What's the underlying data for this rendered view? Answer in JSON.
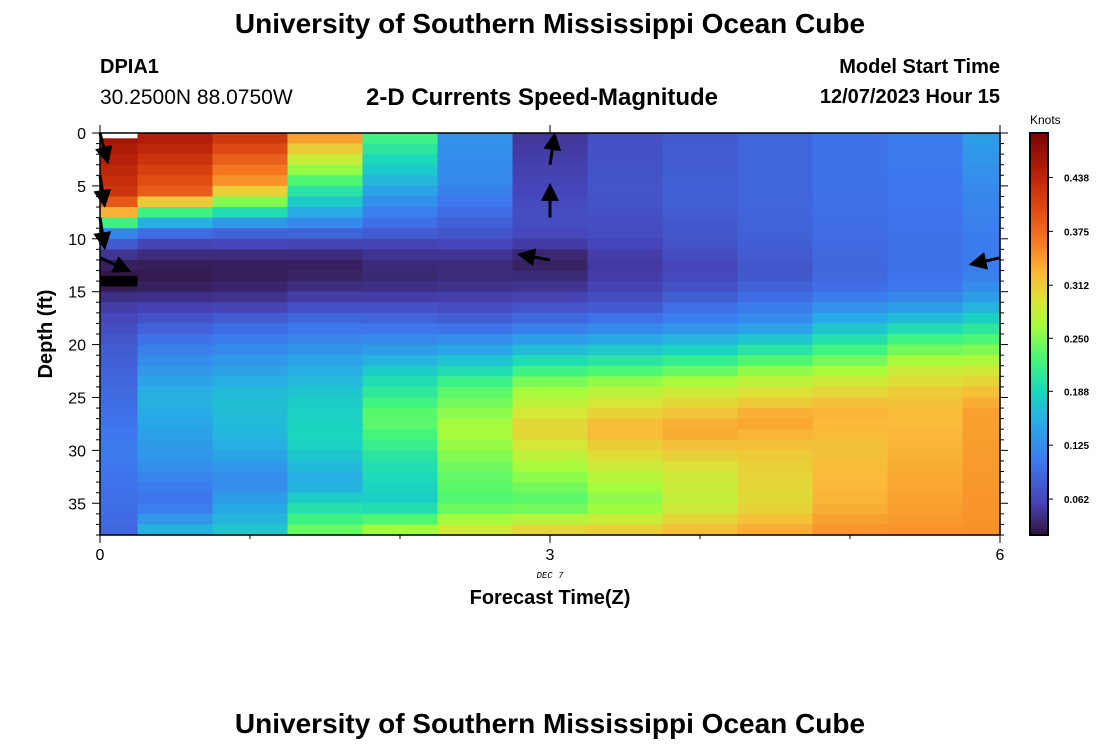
{
  "page": {
    "title_top": "University of Southern Mississippi Ocean Cube",
    "title_bottom": "University of Southern Mississippi Ocean Cube",
    "station": "DPIA1",
    "coords": "30.2500N  88.0750W",
    "subtitle": "2-D Currents Speed-Magnitude",
    "model_start_label": "Model Start Time",
    "model_start_value": "12/07/2023 Hour 15"
  },
  "chart_data": {
    "type": "heatmap",
    "title": "2-D Currents Speed-Magnitude",
    "xlabel": "Forecast Time(Z)",
    "ylabel": "Depth (ft)",
    "x_ticks": [
      0,
      3,
      6
    ],
    "x_date_label": "DEC 7",
    "xlim": [
      0,
      6
    ],
    "y_ticks": [
      0,
      5,
      10,
      15,
      20,
      25,
      30,
      35
    ],
    "ylim": [
      0,
      38
    ],
    "y_inverted": true,
    "colorbar": {
      "label": "Knots",
      "ticks": [
        0.062,
        0.125,
        0.188,
        0.25,
        0.312,
        0.375,
        0.438
      ],
      "range": [
        0.02,
        0.49
      ],
      "colormap": "turbo"
    },
    "time_edges": [
      0,
      0.25,
      0.75,
      1.25,
      1.75,
      2.25,
      2.75,
      3.25,
      3.75,
      4.25,
      4.75,
      5.25,
      5.75,
      6
    ],
    "depth_cells": {
      "start": 0.5,
      "step": 1,
      "count": 38
    },
    "columns": [
      {
        "t": 0.0,
        "profile": [
          [
            0.5,
            0.46
          ],
          [
            6,
            0.42
          ],
          [
            7,
            0.36
          ],
          [
            8,
            0.3
          ],
          [
            9,
            0.14
          ],
          [
            11,
            0.06
          ],
          [
            12,
            0.035
          ],
          [
            14,
            0.02
          ],
          [
            16,
            0.05
          ],
          [
            20,
            0.08
          ],
          [
            30,
            0.11
          ],
          [
            38,
            0.09
          ]
        ]
      },
      {
        "t": 0.5,
        "profile": [
          [
            0.5,
            0.45
          ],
          [
            6,
            0.38
          ],
          [
            7,
            0.25
          ],
          [
            8,
            0.19
          ],
          [
            9,
            0.12
          ],
          [
            10,
            0.07
          ],
          [
            12,
            0.03
          ],
          [
            14,
            0.025
          ],
          [
            16,
            0.05
          ],
          [
            18,
            0.08
          ],
          [
            21,
            0.12
          ],
          [
            25,
            0.16
          ],
          [
            31,
            0.13
          ],
          [
            35,
            0.1
          ],
          [
            38,
            0.17
          ]
        ]
      },
      {
        "t": 1.0,
        "profile": [
          [
            0.5,
            0.42
          ],
          [
            5,
            0.34
          ],
          [
            7,
            0.22
          ],
          [
            8,
            0.17
          ],
          [
            9,
            0.1
          ],
          [
            11,
            0.05
          ],
          [
            12,
            0.03
          ],
          [
            14,
            0.03
          ],
          [
            16,
            0.05
          ],
          [
            18,
            0.09
          ],
          [
            21,
            0.13
          ],
          [
            25,
            0.17
          ],
          [
            29,
            0.16
          ],
          [
            33,
            0.12
          ],
          [
            38,
            0.18
          ]
        ]
      },
      {
        "t": 1.5,
        "profile": [
          [
            0.5,
            0.34
          ],
          [
            3,
            0.27
          ],
          [
            6,
            0.19
          ],
          [
            8,
            0.14
          ],
          [
            10,
            0.07
          ],
          [
            12,
            0.03
          ],
          [
            14,
            0.035
          ],
          [
            16,
            0.06
          ],
          [
            18,
            0.1
          ],
          [
            21,
            0.14
          ],
          [
            25,
            0.18
          ],
          [
            29,
            0.19
          ],
          [
            33,
            0.15
          ],
          [
            38,
            0.25
          ]
        ]
      },
      {
        "t": 2.0,
        "profile": [
          [
            0.5,
            0.22
          ],
          [
            4,
            0.17
          ],
          [
            7,
            0.12
          ],
          [
            9,
            0.09
          ],
          [
            11,
            0.05
          ],
          [
            13,
            0.035
          ],
          [
            15,
            0.045
          ],
          [
            17,
            0.08
          ],
          [
            20,
            0.13
          ],
          [
            23,
            0.19
          ],
          [
            27,
            0.24
          ],
          [
            31,
            0.2
          ],
          [
            35,
            0.18
          ],
          [
            38,
            0.28
          ]
        ]
      },
      {
        "t": 2.5,
        "profile": [
          [
            0.5,
            0.13
          ],
          [
            5,
            0.12
          ],
          [
            8,
            0.09
          ],
          [
            10,
            0.07
          ],
          [
            12,
            0.04
          ],
          [
            14,
            0.04
          ],
          [
            16,
            0.06
          ],
          [
            18,
            0.09
          ],
          [
            21,
            0.16
          ],
          [
            24,
            0.23
          ],
          [
            28,
            0.27
          ],
          [
            32,
            0.24
          ],
          [
            35,
            0.23
          ],
          [
            38,
            0.3
          ]
        ]
      },
      {
        "t": 3.0,
        "profile": [
          [
            0.5,
            0.05
          ],
          [
            5,
            0.06
          ],
          [
            8,
            0.07
          ],
          [
            10,
            0.06
          ],
          [
            12,
            0.03
          ],
          [
            13,
            0.035
          ],
          [
            15,
            0.05
          ],
          [
            18,
            0.1
          ],
          [
            21,
            0.18
          ],
          [
            24,
            0.26
          ],
          [
            28,
            0.31
          ],
          [
            32,
            0.26
          ],
          [
            35,
            0.23
          ],
          [
            38,
            0.32
          ]
        ]
      },
      {
        "t": 3.5,
        "profile": [
          [
            0.5,
            0.07
          ],
          [
            6,
            0.075
          ],
          [
            10,
            0.065
          ],
          [
            12,
            0.05
          ],
          [
            14,
            0.055
          ],
          [
            16,
            0.07
          ],
          [
            18,
            0.11
          ],
          [
            21,
            0.19
          ],
          [
            24,
            0.27
          ],
          [
            28,
            0.33
          ],
          [
            32,
            0.28
          ],
          [
            35,
            0.25
          ],
          [
            38,
            0.32
          ]
        ]
      },
      {
        "t": 4.0,
        "profile": [
          [
            0.5,
            0.08
          ],
          [
            6,
            0.085
          ],
          [
            10,
            0.075
          ],
          [
            13,
            0.06
          ],
          [
            15,
            0.075
          ],
          [
            18,
            0.12
          ],
          [
            21,
            0.2
          ],
          [
            24,
            0.28
          ],
          [
            28,
            0.34
          ],
          [
            32,
            0.29
          ],
          [
            35,
            0.28
          ],
          [
            38,
            0.33
          ]
        ]
      },
      {
        "t": 4.5,
        "profile": [
          [
            0.5,
            0.09
          ],
          [
            6,
            0.09
          ],
          [
            10,
            0.085
          ],
          [
            13,
            0.075
          ],
          [
            15,
            0.09
          ],
          [
            18,
            0.13
          ],
          [
            20,
            0.19
          ],
          [
            23,
            0.27
          ],
          [
            27,
            0.34
          ],
          [
            31,
            0.31
          ],
          [
            35,
            0.3
          ],
          [
            38,
            0.34
          ]
        ]
      },
      {
        "t": 5.0,
        "profile": [
          [
            0.5,
            0.1
          ],
          [
            6,
            0.1
          ],
          [
            10,
            0.095
          ],
          [
            13,
            0.09
          ],
          [
            15,
            0.1
          ],
          [
            17,
            0.14
          ],
          [
            20,
            0.21
          ],
          [
            23,
            0.28
          ],
          [
            26,
            0.33
          ],
          [
            30,
            0.32
          ],
          [
            35,
            0.33
          ],
          [
            38,
            0.35
          ]
        ]
      },
      {
        "t": 5.5,
        "profile": [
          [
            0.5,
            0.11
          ],
          [
            6,
            0.105
          ],
          [
            10,
            0.1
          ],
          [
            13,
            0.1
          ],
          [
            15,
            0.11
          ],
          [
            17,
            0.15
          ],
          [
            19,
            0.21
          ],
          [
            22,
            0.28
          ],
          [
            25,
            0.32
          ],
          [
            30,
            0.33
          ],
          [
            35,
            0.34
          ],
          [
            38,
            0.35
          ]
        ]
      },
      {
        "t": 5.9,
        "profile": [
          [
            0.5,
            0.14
          ],
          [
            6,
            0.12
          ],
          [
            10,
            0.11
          ],
          [
            13,
            0.11
          ],
          [
            15,
            0.13
          ],
          [
            17,
            0.17
          ],
          [
            19,
            0.22
          ],
          [
            21,
            0.26
          ],
          [
            23,
            0.3
          ],
          [
            26,
            0.34
          ],
          [
            38,
            0.35
          ]
        ]
      }
    ],
    "masked_cells": [
      {
        "t0": 0,
        "t1": 0.25,
        "d0": 0,
        "d1": 0.5,
        "fill": "#ffffff"
      },
      {
        "t0": 0,
        "t1": 0.25,
        "d0": 13.5,
        "d1": 14.5,
        "fill": "#000000"
      }
    ],
    "vectors": [
      {
        "t": 0.0,
        "d": 0,
        "dt": 0.05,
        "dd": 2.7
      },
      {
        "t": 0.0,
        "d": 4,
        "dt": 0.03,
        "dd": 2.8
      },
      {
        "t": 0.0,
        "d": 8,
        "dt": 0.03,
        "dd": 2.8
      },
      {
        "t": 0.0,
        "d": 11.8,
        "dt": 0.19,
        "dd": 1.2
      },
      {
        "t": 3.0,
        "d": 8,
        "dt": 0.0,
        "dd": -3.0
      },
      {
        "t": 3.0,
        "d": 3,
        "dt": 0.03,
        "dd": -2.8
      },
      {
        "t": 3.0,
        "d": 12,
        "dt": -0.2,
        "dd": -0.5
      },
      {
        "t": 6.0,
        "d": 11.8,
        "dt": -0.19,
        "dd": 0.6
      }
    ]
  }
}
